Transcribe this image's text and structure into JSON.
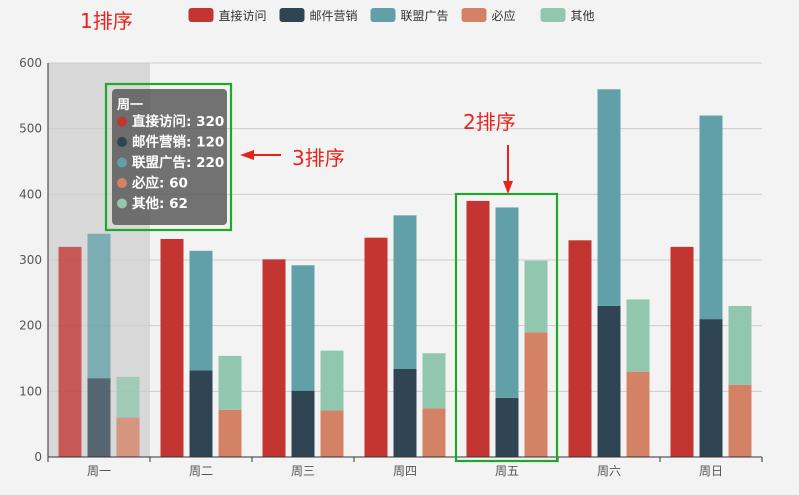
{
  "chart_data": {
    "type": "bar",
    "categories": [
      "周一",
      "周二",
      "周三",
      "周四",
      "周五",
      "周六",
      "周日"
    ],
    "series": [
      {
        "name": "直接访问",
        "stack": null,
        "values": [
          320,
          332,
          301,
          334,
          390,
          330,
          320
        ]
      },
      {
        "name": "邮件营销",
        "stack": "ad",
        "values": [
          120,
          132,
          101,
          134,
          90,
          230,
          210
        ]
      },
      {
        "name": "联盟广告",
        "stack": "ad",
        "values": [
          220,
          182,
          191,
          234,
          290,
          330,
          310
        ]
      },
      {
        "name": "必应",
        "stack": "other",
        "values": [
          60,
          72,
          71,
          74,
          190,
          130,
          110
        ]
      },
      {
        "name": "其他",
        "stack": "other",
        "values": [
          62,
          82,
          91,
          84,
          109,
          110,
          120
        ]
      }
    ],
    "ylim": [
      0,
      600
    ],
    "yticks": [
      0,
      100,
      200,
      300,
      400,
      500,
      600
    ],
    "grid": true,
    "legend_position": "top-center",
    "highlighted_category": "周一"
  },
  "colors": [
    "#c23531",
    "#2f4554",
    "#61a0a8",
    "#d48265",
    "#91c7ae"
  ],
  "tooltip": {
    "title": "周一",
    "rows": [
      "直接访问: 320",
      "邮件营销: 120",
      "联盟广告: 220",
      "必应: 60",
      "其他: 62"
    ]
  },
  "annotations": {
    "a1": "1排序",
    "a2": "2排序",
    "a3": "3排序",
    "color": "#e8231b",
    "box_color": "#1fa82a"
  }
}
